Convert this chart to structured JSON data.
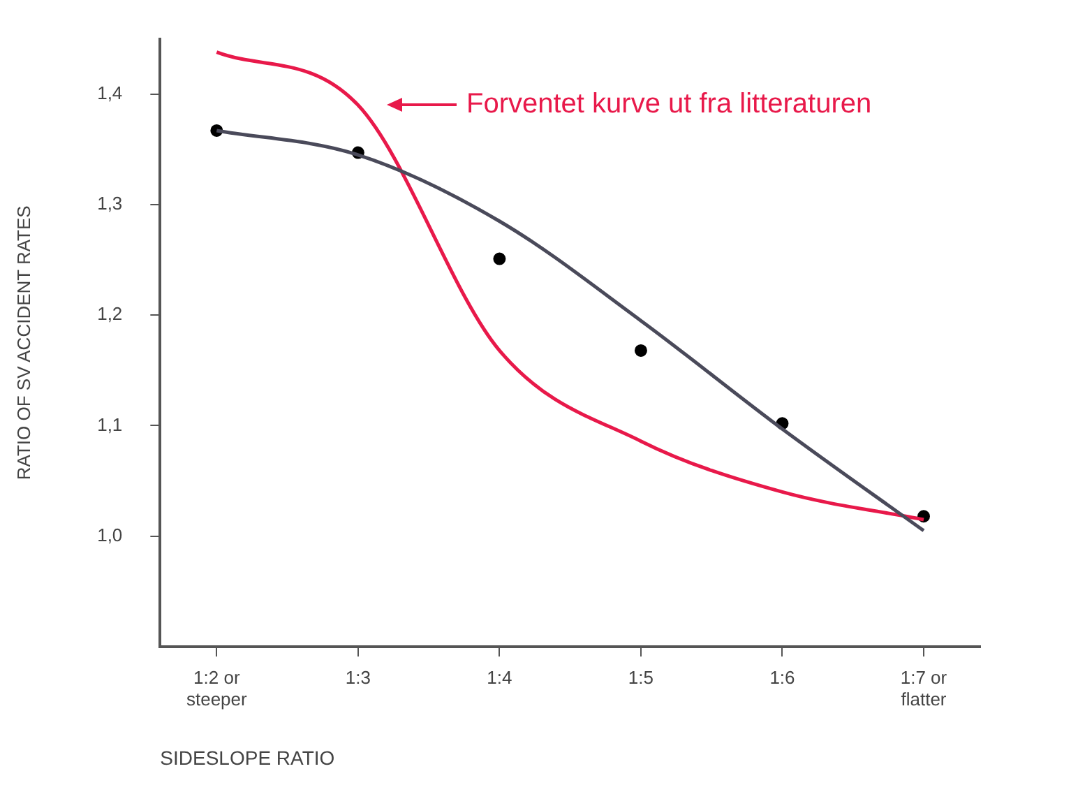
{
  "chart_data": {
    "type": "line",
    "xlabel": "SIDESLOPE RATIO",
    "ylabel": "RATIO OF SV ACCIDENT RATES",
    "categories": [
      "1:2 or steeper",
      "1:3",
      "1:4",
      "1:5",
      "1:6",
      "1:7 or flatter"
    ],
    "ylim": [
      0.9,
      1.45
    ],
    "yticks": [
      {
        "value": 1.0,
        "label": "1,0"
      },
      {
        "value": 1.1,
        "label": "1,1"
      },
      {
        "value": 1.2,
        "label": "1,2"
      },
      {
        "value": 1.3,
        "label": "1,3"
      },
      {
        "value": 1.4,
        "label": "1,4"
      }
    ],
    "grid": false,
    "legend": false,
    "series": [
      {
        "color": "#4a4a5a",
        "marker": "none",
        "values": [
          1.367,
          1.345,
          1.285,
          1.195,
          1.097,
          1.005
        ]
      },
      {
        "color": "#e8194a",
        "marker": "none",
        "values": [
          1.438,
          1.39,
          1.168,
          1.086,
          1.04,
          1.015
        ]
      },
      {
        "type": "scatter",
        "color": "#000000",
        "marker": "circle",
        "values": [
          1.367,
          1.347,
          1.251,
          1.168,
          1.102,
          1.018
        ]
      }
    ],
    "annotations": [
      "Forventet kurve ut fra litteraturen"
    ]
  }
}
